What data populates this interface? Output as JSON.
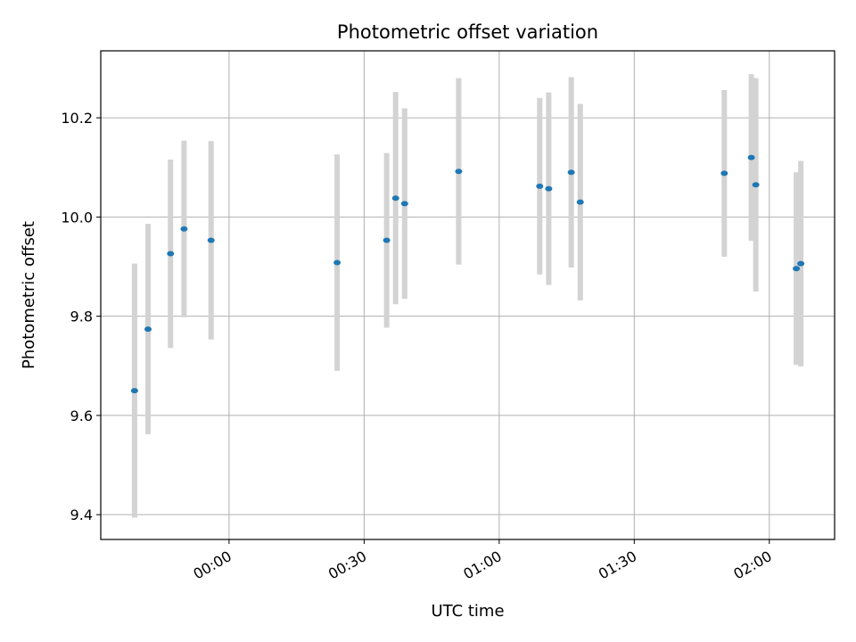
{
  "chart_data": {
    "type": "scatter",
    "title": "Photometric offset variation",
    "xlabel": "UTC time",
    "ylabel": "Photometric offset",
    "x_ticks": [
      "00:00",
      "00:30",
      "01:00",
      "01:30",
      "02:00"
    ],
    "y_ticks": [
      "9.4",
      "9.6",
      "9.8",
      "10.0",
      "10.2"
    ],
    "x_range_minutes": [
      -28.5,
      134.5
    ],
    "y_range": [
      9.35,
      10.335
    ],
    "grid": true,
    "series": [
      {
        "marker_color": "#1f77b4",
        "errorbar_color": "#d3d3d3",
        "points": [
          {
            "x": "23:39",
            "y": 9.65,
            "err": 0.256
          },
          {
            "x": "23:42",
            "y": 9.774,
            "err": 0.212
          },
          {
            "x": "23:47",
            "y": 9.926,
            "err": 0.19
          },
          {
            "x": "23:50",
            "y": 9.976,
            "err": 0.178
          },
          {
            "x": "23:56",
            "y": 9.953,
            "err": 0.2
          },
          {
            "x": "00:24",
            "y": 9.908,
            "err": 0.218
          },
          {
            "x": "00:35",
            "y": 9.953,
            "err": 0.176
          },
          {
            "x": "00:37",
            "y": 10.038,
            "err": 0.214
          },
          {
            "x": "00:39",
            "y": 10.027,
            "err": 0.192
          },
          {
            "x": "00:51",
            "y": 10.092,
            "err": 0.188
          },
          {
            "x": "01:09",
            "y": 10.062,
            "err": 0.178
          },
          {
            "x": "01:11",
            "y": 10.057,
            "err": 0.194
          },
          {
            "x": "01:16",
            "y": 10.09,
            "err": 0.192
          },
          {
            "x": "01:18",
            "y": 10.03,
            "err": 0.198
          },
          {
            "x": "01:50",
            "y": 10.088,
            "err": 0.168
          },
          {
            "x": "01:56",
            "y": 10.12,
            "err": 0.168
          },
          {
            "x": "01:57",
            "y": 10.065,
            "err": 0.215
          },
          {
            "x": "02:06",
            "y": 9.896,
            "err": 0.194
          },
          {
            "x": "02:07",
            "y": 9.906,
            "err": 0.207
          }
        ]
      }
    ]
  }
}
